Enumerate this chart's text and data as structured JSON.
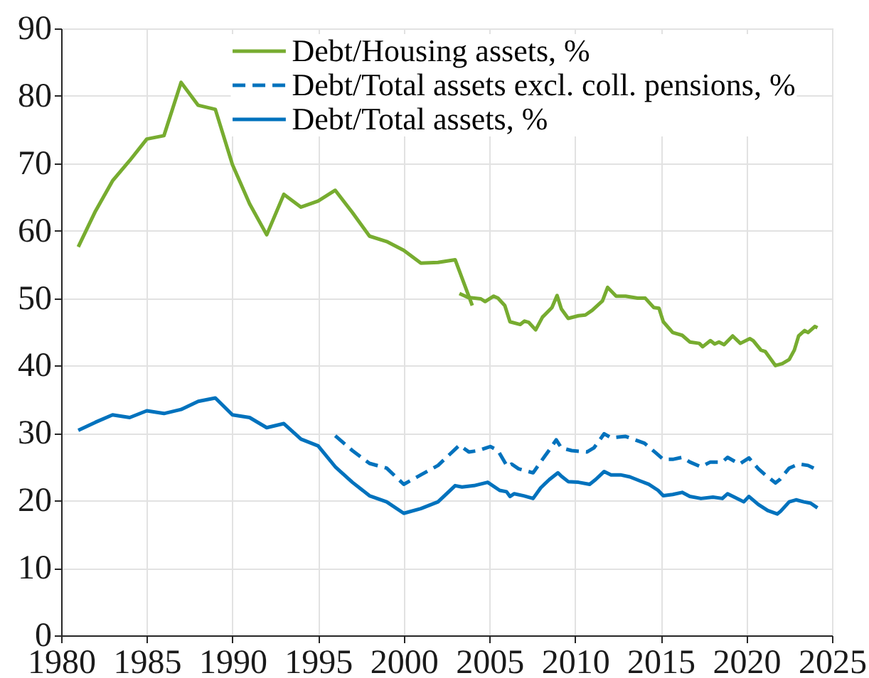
{
  "chart_data": {
    "type": "line",
    "xlim": [
      1980,
      2025
    ],
    "xticks": [
      1980,
      1985,
      1990,
      1995,
      2000,
      2005,
      2010,
      2015,
      2020,
      2025
    ],
    "ylim": [
      0,
      90
    ],
    "yticks": [
      0,
      10,
      20,
      30,
      40,
      50,
      60,
      70,
      80,
      90
    ],
    "grid": true,
    "legend": "top",
    "series": [
      {
        "name": "Debt/Housing assets, %",
        "color": "#77ac30",
        "line_style": "solid",
        "x": [
          1981,
          1982,
          1983,
          1984,
          1985,
          1986,
          1987,
          1988,
          1989,
          1990,
          1991,
          1992,
          1993,
          1994,
          1995,
          1996,
          1997,
          1998,
          1999,
          2000,
          2001,
          2002,
          2003,
          2004
        ],
        "values": [
          57.6,
          62.9,
          67.4,
          70.4,
          73.6,
          74.1,
          82.0,
          78.6,
          78.0,
          69.8,
          64.0,
          59.4,
          65.4,
          63.5,
          64.4,
          66.0,
          62.7,
          59.2,
          58.4,
          57.1,
          55.2,
          55.3,
          55.7,
          48.9
        ]
      },
      {
        "name": "Debt/Total assets excl. coll. pensions, %",
        "color": "#0072bd",
        "line_style": "dashed",
        "x": [
          1996,
          1997,
          1998,
          1999,
          2000,
          2001,
          2002,
          2003,
          2003.25,
          2003.8,
          2004.35,
          2005.05,
          2005.5,
          2006.05,
          2006.3,
          2006.7,
          2007.55,
          2008.1,
          2008.5,
          2008.9,
          2009.2,
          2009.8,
          2010.7,
          2011.1,
          2011.7,
          2012.1,
          2012.95,
          2013.5,
          2014.05,
          2014.7,
          2015.15,
          2015.7,
          2016.25,
          2016.7,
          2017.35,
          2017.9,
          2018.6,
          2018.9,
          2019.6,
          2020.15,
          2020.7,
          2021.1,
          2021.7,
          2021.95,
          2022.5,
          2023.05,
          2023.6,
          2024.15
        ],
        "values": [
          29.6,
          27.4,
          25.5,
          24.8,
          22.4,
          23.8,
          25.2,
          27.6,
          28.2,
          27.2,
          27.4,
          28.0,
          27.4,
          25.0,
          25.4,
          24.7,
          24.1,
          26.1,
          27.5,
          29.0,
          27.8,
          27.4,
          27.2,
          27.8,
          29.9,
          29.3,
          29.5,
          29.0,
          28.5,
          27.1,
          26.1,
          26.1,
          26.4,
          25.7,
          25.0,
          25.7,
          25.7,
          26.4,
          25.4,
          26.3,
          24.7,
          23.8,
          22.6,
          23.1,
          24.8,
          25.4,
          25.2,
          24.5
        ]
      },
      {
        "name": "Debt/Total assets, %",
        "color": "#0072bd",
        "line_style": "solid",
        "x": [
          1981,
          1982,
          1983,
          1984,
          1985,
          1986,
          1987,
          1988,
          1989,
          1990,
          1991,
          1992,
          1993,
          1994,
          1995,
          1996,
          1997,
          1998,
          1999,
          2000,
          2001,
          2002,
          2003,
          2003.4,
          2004.1,
          2004.9,
          2005.6,
          2006.0,
          2006.2,
          2006.45,
          2007.0,
          2007.55,
          2008.0,
          2008.5,
          2009.0,
          2009.2,
          2009.6,
          2010.2,
          2010.85,
          2011.2,
          2011.7,
          2012.1,
          2012.65,
          2013.2,
          2013.8,
          2014.3,
          2014.85,
          2015.15,
          2015.7,
          2016.25,
          2016.7,
          2017.35,
          2018.05,
          2018.6,
          2018.9,
          2019.3,
          2019.85,
          2020.15,
          2020.7,
          2021.25,
          2021.8,
          2022.0,
          2022.5,
          2022.9,
          2023.35,
          2023.75,
          2024.15
        ],
        "values": [
          30.4,
          31.6,
          32.7,
          32.3,
          33.3,
          32.9,
          33.5,
          34.7,
          35.2,
          32.7,
          32.3,
          30.8,
          31.4,
          29.1,
          28.1,
          25.0,
          22.7,
          20.7,
          19.8,
          18.1,
          18.8,
          19.8,
          22.2,
          22.0,
          22.2,
          22.7,
          21.5,
          21.3,
          20.6,
          21.0,
          20.7,
          20.3,
          21.9,
          23.1,
          24.1,
          23.6,
          22.8,
          22.7,
          22.4,
          23.1,
          24.3,
          23.8,
          23.8,
          23.5,
          22.9,
          22.4,
          21.5,
          20.7,
          20.9,
          21.2,
          20.6,
          20.3,
          20.5,
          20.3,
          21.0,
          20.5,
          19.8,
          20.6,
          19.4,
          18.5,
          18.0,
          18.4,
          19.8,
          20.1,
          19.8,
          19.6,
          18.9
        ]
      },
      {
        "color": "#77ac30",
        "line_style": "solid",
        "x": [
          2003.25,
          2003.75,
          2004.5,
          2004.75,
          2005.25,
          2005.5,
          2005.9,
          2006.2,
          2006.8,
          2007.05,
          2007.3,
          2007.7,
          2008.1,
          2008.65,
          2008.95,
          2009.2,
          2009.6,
          2010.2,
          2010.6,
          2011.0,
          2011.6,
          2011.9,
          2012.4,
          2012.95,
          2013.65,
          2014.1,
          2014.6,
          2014.9,
          2015.15,
          2015.7,
          2016.25,
          2016.7,
          2017.25,
          2017.45,
          2017.9,
          2018.15,
          2018.4,
          2018.7,
          2019.2,
          2019.65,
          2020.2,
          2020.4,
          2020.85,
          2021.1,
          2021.7,
          2022.1,
          2022.5,
          2022.8,
          2023.05,
          2023.4,
          2023.6,
          2024.0,
          2024.15
        ],
        "values": [
          50.7,
          50.1,
          49.9,
          49.5,
          50.3,
          50.0,
          48.9,
          46.5,
          46.1,
          46.6,
          46.4,
          45.3,
          47.2,
          48.6,
          50.4,
          48.4,
          47.0,
          47.4,
          47.5,
          48.2,
          49.6,
          51.6,
          50.3,
          50.3,
          50.0,
          50.0,
          48.6,
          48.5,
          46.5,
          44.9,
          44.5,
          43.5,
          43.3,
          42.8,
          43.7,
          43.2,
          43.5,
          43.1,
          44.4,
          43.3,
          44.0,
          43.7,
          42.3,
          42.1,
          40.0,
          40.3,
          40.9,
          42.3,
          44.4,
          45.2,
          44.9,
          45.8,
          45.6
        ]
      }
    ]
  }
}
